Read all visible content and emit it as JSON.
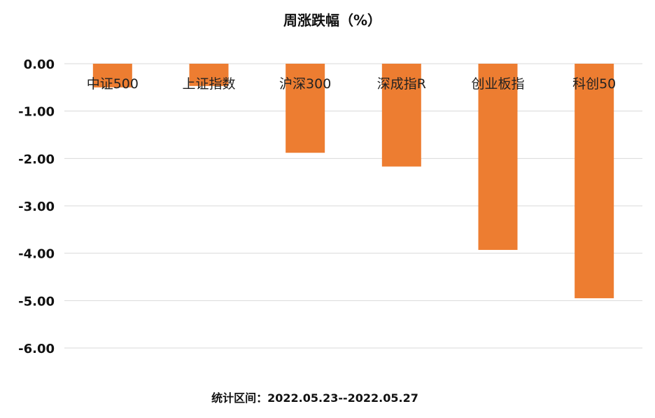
{
  "chart_data": {
    "type": "bar",
    "title": "周涨跌幅（%）",
    "categories": [
      "中证500",
      "上证指数",
      "沪深300",
      "深成指R",
      "创业板指",
      "科创50"
    ],
    "values": [
      -0.5,
      -0.47,
      -1.88,
      -2.17,
      -3.93,
      -4.95
    ],
    "ylim": [
      -6,
      0
    ],
    "yticks": [
      0,
      -1,
      -2,
      -3,
      -4,
      -5,
      -6
    ],
    "ytick_labels": [
      "0.00",
      "-1.00",
      "-2.00",
      "-3.00",
      "-4.00",
      "-5.00",
      "-6.00"
    ],
    "xlabel": "",
    "ylabel": "",
    "grid": true,
    "legend": "none",
    "bar_color": "#ED7D31",
    "grid_color": "#D9D9D9"
  },
  "footnote": "统计区间：2022.05.23--2022.05.27"
}
